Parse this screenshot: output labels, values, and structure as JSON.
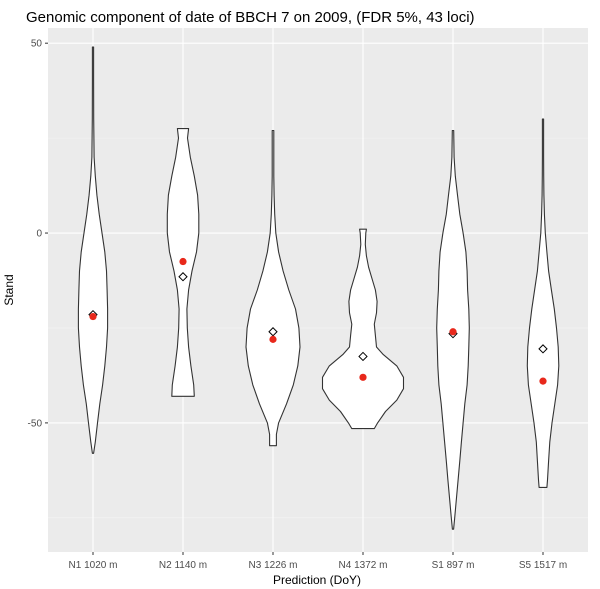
{
  "chart_data": {
    "type": "violin",
    "title": "Genomic component of date of BBCH 7 on 2009, (FDR 5%, 43 loci)",
    "xlabel": "Prediction (DoY)",
    "ylabel": "Stand",
    "categories": [
      "N1 1020 m",
      "N2 1140 m",
      "N3 1226 m",
      "N4 1372 m",
      "S1 897 m",
      "S5 1517 m"
    ],
    "ylim": [
      -84,
      54
    ],
    "y_ticks": [
      -50,
      0,
      50
    ],
    "grid": true,
    "legend": "none",
    "colors": {
      "panel_bg": "#ebebeb",
      "grid_major": "#ffffff",
      "grid_minor": "#f5f5f5",
      "violin_fill": "#ffffff",
      "violin_stroke": "#333333",
      "mean_point": "#e8281b",
      "diamond_stroke": "#000000"
    },
    "violins": [
      {
        "category": "N1 1020 m",
        "mean": -22,
        "diamond": -21.5,
        "profile": [
          [
            -58,
            0.5
          ],
          [
            -55,
            2
          ],
          [
            -50,
            4
          ],
          [
            -45,
            6
          ],
          [
            -40,
            8.5
          ],
          [
            -35,
            10.5
          ],
          [
            -30,
            12
          ],
          [
            -25,
            13
          ],
          [
            -20,
            13
          ],
          [
            -15,
            12.5
          ],
          [
            -10,
            12
          ],
          [
            -5,
            10.5
          ],
          [
            0,
            8
          ],
          [
            5,
            5.5
          ],
          [
            10,
            3.5
          ],
          [
            15,
            2
          ],
          [
            20,
            1
          ],
          [
            25,
            0.8
          ],
          [
            30,
            0.6
          ],
          [
            40,
            0.5
          ],
          [
            49,
            0.5
          ]
        ]
      },
      {
        "category": "N2 1140 m",
        "mean": -7.5,
        "diamond": -11.5,
        "profile": [
          [
            -43,
            10
          ],
          [
            -40,
            9.5
          ],
          [
            -35,
            7
          ],
          [
            -30,
            5
          ],
          [
            -25,
            3.8
          ],
          [
            -20,
            3.5
          ],
          [
            -15,
            5
          ],
          [
            -10,
            8
          ],
          [
            -5,
            12
          ],
          [
            0,
            14
          ],
          [
            5,
            14
          ],
          [
            10,
            13
          ],
          [
            15,
            10
          ],
          [
            20,
            6.5
          ],
          [
            25,
            4
          ],
          [
            27.5,
            5
          ]
        ]
      },
      {
        "category": "N3 1226 m",
        "mean": -28,
        "diamond": -26,
        "profile": [
          [
            -56,
            3
          ],
          [
            -53,
            3
          ],
          [
            -50,
            5
          ],
          [
            -45,
            12
          ],
          [
            -40,
            18
          ],
          [
            -35,
            22
          ],
          [
            -30,
            24
          ],
          [
            -25,
            23
          ],
          [
            -20,
            20
          ],
          [
            -15,
            14
          ],
          [
            -10,
            9
          ],
          [
            -5,
            5
          ],
          [
            0,
            2.5
          ],
          [
            5,
            1.5
          ],
          [
            10,
            1
          ],
          [
            15,
            0.7
          ],
          [
            20,
            0.7
          ],
          [
            27,
            0.7
          ]
        ]
      },
      {
        "category": "N4 1372 m",
        "mean": -38,
        "diamond": -32.5,
        "profile": [
          [
            -51.5,
            10
          ],
          [
            -50,
            13
          ],
          [
            -47,
            20
          ],
          [
            -44,
            30
          ],
          [
            -41,
            36
          ],
          [
            -38,
            36
          ],
          [
            -35,
            30
          ],
          [
            -32,
            18
          ],
          [
            -30,
            12
          ],
          [
            -27,
            11
          ],
          [
            -24,
            10
          ],
          [
            -21,
            12
          ],
          [
            -18,
            12.5
          ],
          [
            -15,
            11
          ],
          [
            -12,
            8
          ],
          [
            -9,
            5
          ],
          [
            -6,
            3
          ],
          [
            -3,
            2
          ],
          [
            0,
            2.5
          ],
          [
            1,
            3
          ]
        ]
      },
      {
        "category": "S1 897 m",
        "mean": -26,
        "diamond": -26.5,
        "profile": [
          [
            -78,
            0.5
          ],
          [
            -75,
            1.5
          ],
          [
            -70,
            3
          ],
          [
            -65,
            4.5
          ],
          [
            -60,
            6
          ],
          [
            -55,
            7.5
          ],
          [
            -50,
            9
          ],
          [
            -45,
            10.5
          ],
          [
            -40,
            12.5
          ],
          [
            -35,
            13.5
          ],
          [
            -30,
            14
          ],
          [
            -25,
            14.5
          ],
          [
            -20,
            14
          ],
          [
            -15,
            13
          ],
          [
            -10,
            12.5
          ],
          [
            -5,
            11.5
          ],
          [
            0,
            9
          ],
          [
            5,
            6
          ],
          [
            10,
            4
          ],
          [
            15,
            2
          ],
          [
            20,
            1
          ],
          [
            27,
            0.6
          ]
        ]
      },
      {
        "category": "S5 1517 m",
        "mean": -39,
        "diamond": -30.5,
        "profile": [
          [
            -67,
            3.5
          ],
          [
            -65,
            4
          ],
          [
            -60,
            5
          ],
          [
            -55,
            6
          ],
          [
            -50,
            8
          ],
          [
            -45,
            10.5
          ],
          [
            -40,
            13
          ],
          [
            -35,
            14
          ],
          [
            -30,
            13.5
          ],
          [
            -25,
            12
          ],
          [
            -20,
            10
          ],
          [
            -15,
            7.5
          ],
          [
            -10,
            5
          ],
          [
            -5,
            3.5
          ],
          [
            0,
            2
          ],
          [
            5,
            1.2
          ],
          [
            10,
            0.8
          ],
          [
            15,
            0.6
          ],
          [
            20,
            0.5
          ],
          [
            25,
            0.5
          ],
          [
            30,
            0.5
          ]
        ]
      }
    ]
  }
}
